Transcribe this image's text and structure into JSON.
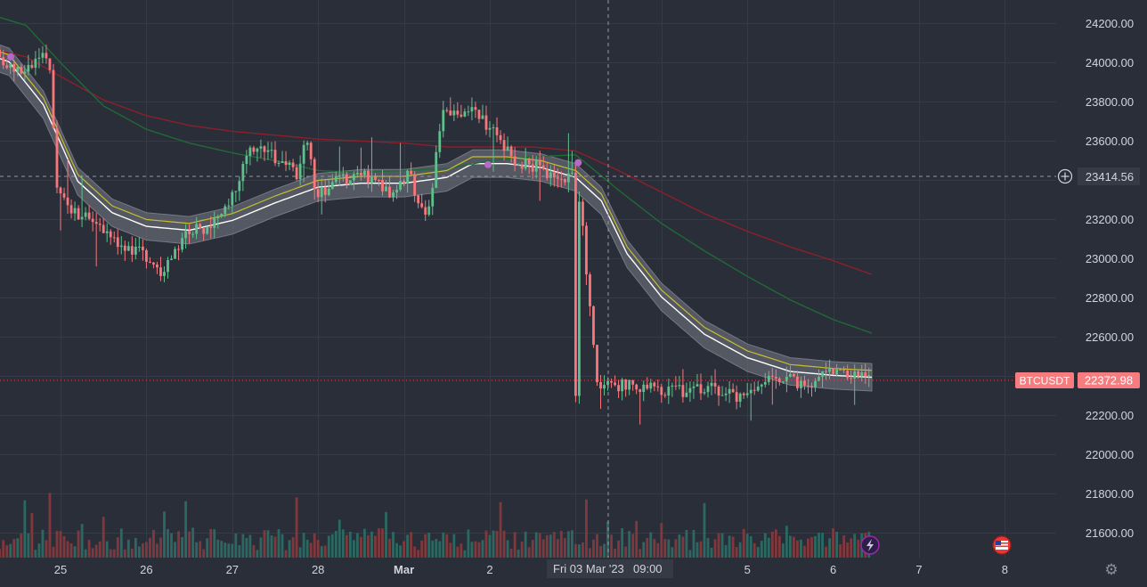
{
  "symbol": "BTCUSDT",
  "last_price": "22372.98",
  "crosshair": {
    "price_label": "23414.56",
    "time_label_date": "Fri 03 Mar '23",
    "time_label_time": "09:00"
  },
  "chart_data": {
    "type": "candlestick",
    "price_axis_ticks": [
      "24200.00",
      "24000.00",
      "23800.00",
      "23600.00",
      "23400.00",
      "23200.00",
      "23000.00",
      "22800.00",
      "22600.00",
      "22400.00",
      "22200.00",
      "22000.00",
      "21800.00",
      "21600.00"
    ],
    "ylim": [
      21475,
      24320
    ],
    "time_axis_ticks": [
      "25",
      "26",
      "27",
      "28",
      "Mar",
      "2",
      "3",
      "5",
      "6",
      "7",
      "8"
    ],
    "grid": true,
    "series": [
      {
        "name": "price",
        "approx_path": [
          [
            24.0,
            24080
          ],
          [
            24.3,
            24030
          ],
          [
            24.6,
            23950
          ],
          [
            24.9,
            24050
          ],
          [
            25.0,
            23380
          ],
          [
            25.2,
            23230
          ],
          [
            25.5,
            23180
          ],
          [
            25.8,
            23050
          ],
          [
            26.0,
            23040
          ],
          [
            26.2,
            22920
          ],
          [
            26.5,
            23120
          ],
          [
            26.8,
            23180
          ],
          [
            27.0,
            23250
          ],
          [
            27.2,
            23530
          ],
          [
            27.4,
            23560
          ],
          [
            27.6,
            23500
          ],
          [
            27.8,
            23420
          ],
          [
            27.9,
            23680
          ],
          [
            28.0,
            23330
          ],
          [
            28.3,
            23400
          ],
          [
            28.6,
            23420
          ],
          [
            28.9,
            23330
          ],
          [
            29.1,
            23440
          ],
          [
            29.3,
            23180
          ],
          [
            29.5,
            23750
          ],
          [
            29.8,
            23760
          ],
          [
            30.1,
            23640
          ],
          [
            30.3,
            23510
          ],
          [
            30.6,
            23470
          ],
          [
            30.9,
            23400
          ],
          [
            31.0,
            23450
          ],
          [
            31.1,
            23250
          ],
          [
            31.3,
            22340
          ],
          [
            31.6,
            22350
          ],
          [
            31.9,
            22340
          ],
          [
            32.2,
            22320
          ],
          [
            32.6,
            22350
          ],
          [
            32.9,
            22300
          ],
          [
            33.1,
            22350
          ],
          [
            33.4,
            22400
          ],
          [
            33.7,
            22360
          ],
          [
            34.0,
            22420
          ],
          [
            34.3,
            22400
          ],
          [
            34.45,
            22372.98
          ]
        ]
      },
      {
        "name": "ma_fast",
        "color": "#c7bd2f",
        "approx_path": [
          [
            24.0,
            24100
          ],
          [
            24.4,
            24040
          ],
          [
            24.8,
            23820
          ],
          [
            25.2,
            23430
          ],
          [
            25.6,
            23270
          ],
          [
            26.0,
            23200
          ],
          [
            26.5,
            23180
          ],
          [
            27.0,
            23230
          ],
          [
            27.5,
            23320
          ],
          [
            28.0,
            23400
          ],
          [
            28.5,
            23420
          ],
          [
            29.0,
            23420
          ],
          [
            29.5,
            23450
          ],
          [
            29.8,
            23520
          ],
          [
            30.2,
            23520
          ],
          [
            30.6,
            23500
          ],
          [
            31.0,
            23450
          ],
          [
            31.3,
            23330
          ],
          [
            31.6,
            23060
          ],
          [
            32.0,
            22840
          ],
          [
            32.5,
            22650
          ],
          [
            33.0,
            22530
          ],
          [
            33.5,
            22460
          ],
          [
            34.0,
            22440
          ],
          [
            34.45,
            22430
          ]
        ]
      },
      {
        "name": "ma_mid",
        "color": "#1f6a35",
        "approx_path": [
          [
            24.0,
            24270
          ],
          [
            24.6,
            24190
          ],
          [
            25.0,
            24000
          ],
          [
            25.5,
            23780
          ],
          [
            26.0,
            23660
          ],
          [
            26.5,
            23590
          ],
          [
            27.0,
            23540
          ],
          [
            27.5,
            23500
          ],
          [
            28.0,
            23450
          ],
          [
            28.5,
            23440
          ],
          [
            29.0,
            23450
          ],
          [
            29.5,
            23460
          ],
          [
            30.0,
            23500
          ],
          [
            30.5,
            23520
          ],
          [
            31.0,
            23530
          ],
          [
            31.5,
            23350
          ],
          [
            32.0,
            23180
          ],
          [
            32.5,
            23040
          ],
          [
            33.0,
            22910
          ],
          [
            33.5,
            22790
          ],
          [
            34.0,
            22690
          ],
          [
            34.45,
            22620
          ]
        ]
      },
      {
        "name": "ma_slow",
        "color": "#8d1f2b",
        "approx_path": [
          [
            24.0,
            24090
          ],
          [
            24.6,
            24030
          ],
          [
            25.0,
            23930
          ],
          [
            25.5,
            23810
          ],
          [
            26.0,
            23730
          ],
          [
            26.5,
            23680
          ],
          [
            27.0,
            23650
          ],
          [
            27.5,
            23630
          ],
          [
            28.0,
            23610
          ],
          [
            28.5,
            23600
          ],
          [
            29.0,
            23590
          ],
          [
            29.5,
            23570
          ],
          [
            30.0,
            23570
          ],
          [
            30.5,
            23570
          ],
          [
            31.0,
            23550
          ],
          [
            31.5,
            23450
          ],
          [
            32.0,
            23340
          ],
          [
            32.5,
            23230
          ],
          [
            33.0,
            23140
          ],
          [
            33.5,
            23060
          ],
          [
            34.0,
            22990
          ],
          [
            34.45,
            22920
          ]
        ]
      }
    ]
  }
}
